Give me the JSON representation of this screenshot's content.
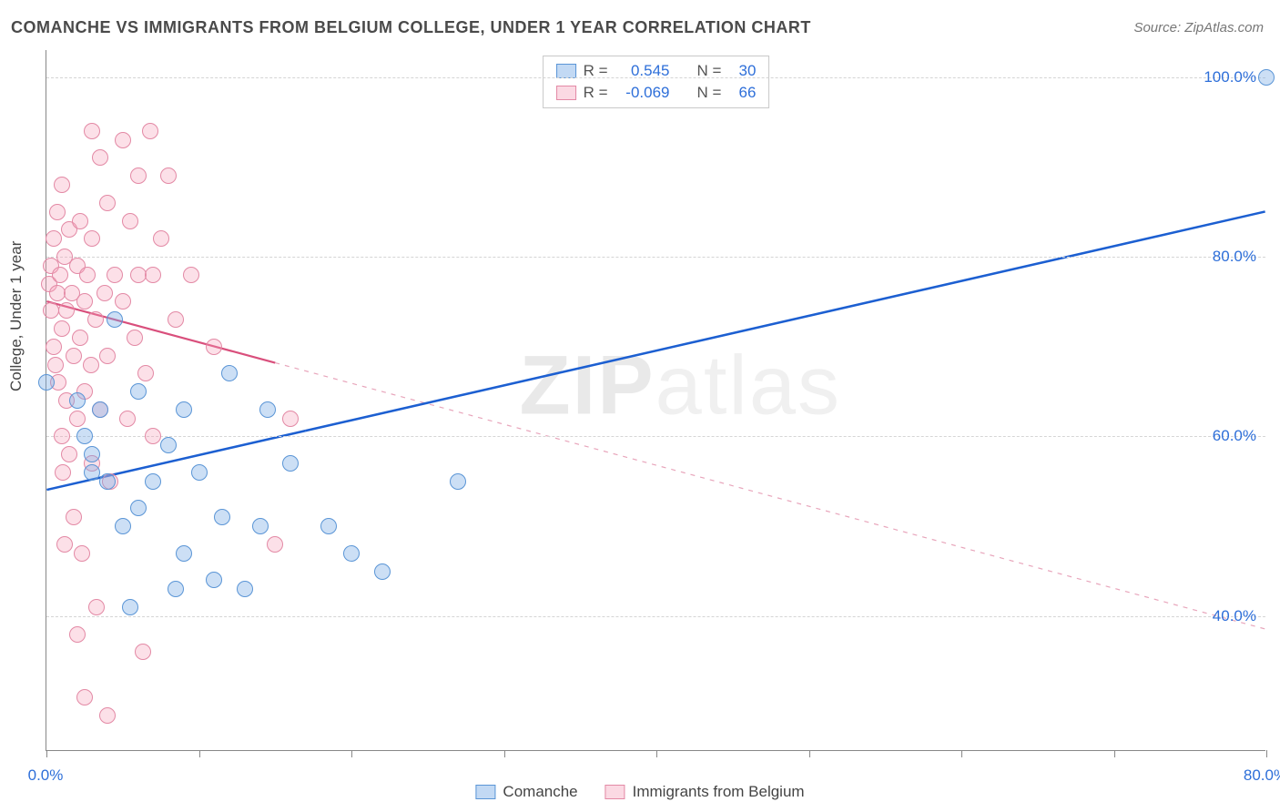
{
  "title": "COMANCHE VS IMMIGRANTS FROM BELGIUM COLLEGE, UNDER 1 YEAR CORRELATION CHART",
  "source": "Source: ZipAtlas.com",
  "y_axis_label": "College, Under 1 year",
  "chart": {
    "type": "scatter",
    "xlim": [
      0,
      80
    ],
    "ylim": [
      25,
      103
    ],
    "y_ticks": [
      40,
      60,
      80,
      100
    ],
    "y_tick_labels": [
      "40.0%",
      "60.0%",
      "80.0%",
      "100.0%"
    ],
    "x_ticks": [
      0,
      10,
      20,
      30,
      40,
      50,
      60,
      70,
      80
    ],
    "x_tick_labels": {
      "0": "0.0%",
      "80": "80.0%"
    },
    "background_color": "#ffffff",
    "grid_color": "#d5d5d5",
    "marker_radius": 9
  },
  "series": {
    "blue": {
      "name": "Comanche",
      "color_fill": "rgba(120,170,230,0.38)",
      "color_stroke": "#5a95d6",
      "trend": {
        "x1": 0,
        "y1": 54,
        "x2_solid": 17,
        "x2": 80,
        "y2": 85,
        "solid_color": "#1c5fd1",
        "width": 2.5
      },
      "r": "0.545",
      "n": "30",
      "points": [
        [
          0,
          66
        ],
        [
          2,
          64
        ],
        [
          2.5,
          60
        ],
        [
          3,
          58
        ],
        [
          3,
          56
        ],
        [
          3.5,
          63
        ],
        [
          4,
          55
        ],
        [
          4.5,
          73
        ],
        [
          5,
          50
        ],
        [
          5.5,
          41
        ],
        [
          6,
          52
        ],
        [
          6,
          65
        ],
        [
          7,
          55
        ],
        [
          8,
          59
        ],
        [
          8.5,
          43
        ],
        [
          9,
          47
        ],
        [
          9,
          63
        ],
        [
          10,
          56
        ],
        [
          11,
          44
        ],
        [
          11.5,
          51
        ],
        [
          12,
          67
        ],
        [
          13,
          43
        ],
        [
          14,
          50
        ],
        [
          14.5,
          63
        ],
        [
          16,
          57
        ],
        [
          18.5,
          50
        ],
        [
          20,
          47
        ],
        [
          22,
          45
        ],
        [
          27,
          55
        ],
        [
          80,
          100
        ]
      ]
    },
    "pink": {
      "name": "Immigrants from Belgium",
      "color_fill": "rgba(245,160,185,0.32)",
      "color_stroke": "#e389a5",
      "trend": {
        "x1": 0,
        "y1": 75,
        "x2_solid": 15,
        "x2": 80,
        "y2": 38.5,
        "solid_color": "#d94f7c",
        "width": 2.2
      },
      "r": "-0.069",
      "n": "66",
      "points": [
        [
          0.2,
          77
        ],
        [
          0.3,
          79
        ],
        [
          0.3,
          74
        ],
        [
          0.5,
          70
        ],
        [
          0.5,
          82
        ],
        [
          0.6,
          68
        ],
        [
          0.7,
          76
        ],
        [
          0.7,
          85
        ],
        [
          0.8,
          66
        ],
        [
          0.9,
          78
        ],
        [
          1,
          60
        ],
        [
          1,
          72
        ],
        [
          1,
          88
        ],
        [
          1.1,
          56
        ],
        [
          1.2,
          80
        ],
        [
          1.2,
          48
        ],
        [
          1.3,
          74
        ],
        [
          1.3,
          64
        ],
        [
          1.5,
          83
        ],
        [
          1.5,
          58
        ],
        [
          1.7,
          76
        ],
        [
          1.8,
          69
        ],
        [
          1.8,
          51
        ],
        [
          2,
          79
        ],
        [
          2,
          62
        ],
        [
          2,
          38
        ],
        [
          2.2,
          84
        ],
        [
          2.2,
          71
        ],
        [
          2.3,
          47
        ],
        [
          2.5,
          75
        ],
        [
          2.5,
          65
        ],
        [
          2.5,
          31
        ],
        [
          2.7,
          78
        ],
        [
          2.9,
          68
        ],
        [
          3,
          94
        ],
        [
          3,
          57
        ],
        [
          3,
          82
        ],
        [
          3.2,
          73
        ],
        [
          3.3,
          41
        ],
        [
          3.5,
          91
        ],
        [
          3.5,
          63
        ],
        [
          3.8,
          76
        ],
        [
          4,
          86
        ],
        [
          4,
          69
        ],
        [
          4,
          29
        ],
        [
          4.2,
          55
        ],
        [
          4.5,
          78
        ],
        [
          5,
          75
        ],
        [
          5,
          93
        ],
        [
          5.3,
          62
        ],
        [
          5.5,
          84
        ],
        [
          5.8,
          71
        ],
        [
          6,
          78
        ],
        [
          6,
          89
        ],
        [
          6.3,
          36
        ],
        [
          6.5,
          67
        ],
        [
          6.8,
          94
        ],
        [
          7,
          78
        ],
        [
          7,
          60
        ],
        [
          7.5,
          82
        ],
        [
          8,
          89
        ],
        [
          8.5,
          73
        ],
        [
          9.5,
          78
        ],
        [
          11,
          70
        ],
        [
          15,
          48
        ],
        [
          16,
          62
        ]
      ]
    }
  },
  "legend_top": [
    {
      "swatch": "blue",
      "r_label": "R =",
      "r_val": "0.545",
      "n_label": "N =",
      "n_val": "30"
    },
    {
      "swatch": "pink",
      "r_label": "R =",
      "r_val": "-0.069",
      "n_label": "N =",
      "n_val": "66"
    }
  ],
  "legend_bottom": [
    {
      "swatch": "blue",
      "label": "Comanche"
    },
    {
      "swatch": "pink",
      "label": "Immigrants from Belgium"
    }
  ],
  "watermark": {
    "bold": "ZIP",
    "rest": "atlas"
  }
}
